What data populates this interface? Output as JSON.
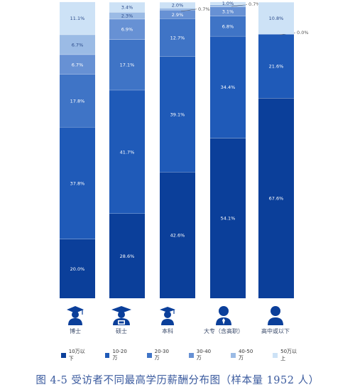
{
  "chart_data": {
    "type": "bar",
    "stacked": true,
    "normalized": true,
    "categories": [
      "博士",
      "硕士",
      "本科",
      "大专（含高职）",
      "高中或以下"
    ],
    "series": [
      {
        "name": "10万以下",
        "color": "#0b3f9a",
        "values": [
          20.0,
          28.6,
          42.6,
          54.1,
          67.6
        ]
      },
      {
        "name": "10-20万",
        "color": "#1f5ab8",
        "values": [
          37.8,
          41.7,
          39.1,
          34.4,
          21.6
        ]
      },
      {
        "name": "20-30万",
        "color": "#3f74c6",
        "values": [
          17.8,
          17.1,
          12.7,
          6.8,
          0.0
        ]
      },
      {
        "name": "30-40万",
        "color": "#6791d4",
        "values": [
          6.7,
          6.9,
          2.9,
          3.1,
          0.0
        ]
      },
      {
        "name": "40-50万",
        "color": "#9bbbe5",
        "values": [
          6.7,
          2.3,
          0.7,
          0.7,
          0.0
        ]
      },
      {
        "name": "50万以上",
        "color": "#cde2f6",
        "values": [
          11.1,
          3.4,
          2.0,
          1.0,
          10.8
        ]
      }
    ],
    "data_labels": [
      [
        "20.0%",
        "37.8%",
        "17.8%",
        "6.7%",
        "6.7%",
        "11.1%"
      ],
      [
        "28.6%",
        "41.7%",
        "17.1%",
        "6.9%",
        "2.3%",
        "3.4%"
      ],
      [
        "42.6%",
        "39.1%",
        "12.7%",
        "2.9%",
        "0.7%",
        "2.0%"
      ],
      [
        "54.1%",
        "34.4%",
        "6.8%",
        "3.1%",
        "0.7%",
        "1.0%"
      ],
      [
        "67.6%",
        "21.6%",
        "0.0%",
        "",
        "",
        "10.8%"
      ]
    ],
    "ylim": [
      0,
      100
    ],
    "title": "图 4-5 受访者不同最高学历薪酬分布图（样本量 1952 人）"
  },
  "icons": [
    "doctor-graduate-icon",
    "master-graduate-icon",
    "bachelor-graduate-icon",
    "college-person-icon",
    "person-icon"
  ]
}
